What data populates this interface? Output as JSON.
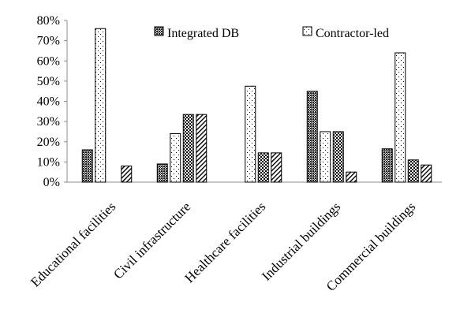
{
  "chart_data": {
    "type": "bar",
    "categories": [
      "Educational facilities",
      "Civil infrastructure",
      "Healthcare facilities",
      "Industrial buildings",
      "Commercial buildings"
    ],
    "series": [
      {
        "name": "Integrated DB",
        "pattern": "dense-dark",
        "values": [
          16,
          9,
          0,
          45,
          16.5
        ]
      },
      {
        "name": "Contractor-led",
        "pattern": "sparse-dots",
        "values": [
          76,
          24,
          47.5,
          25,
          64
        ]
      },
      {
        "pattern": "checker",
        "values": [
          0,
          33.5,
          14.5,
          25,
          11
        ]
      },
      {
        "pattern": "diagonal",
        "values": [
          8,
          33.5,
          14.5,
          5,
          8.5
        ]
      }
    ],
    "yticks": [
      "0%",
      "10%",
      "20%",
      "30%",
      "40%",
      "50%",
      "60%",
      "70%",
      "80%"
    ],
    "ylim": [
      0,
      80
    ],
    "legend_position": "top-right",
    "grid": false,
    "colors": {
      "bar_stroke": "#000000",
      "axis": "#8c8c8c",
      "text": "#000000"
    }
  }
}
